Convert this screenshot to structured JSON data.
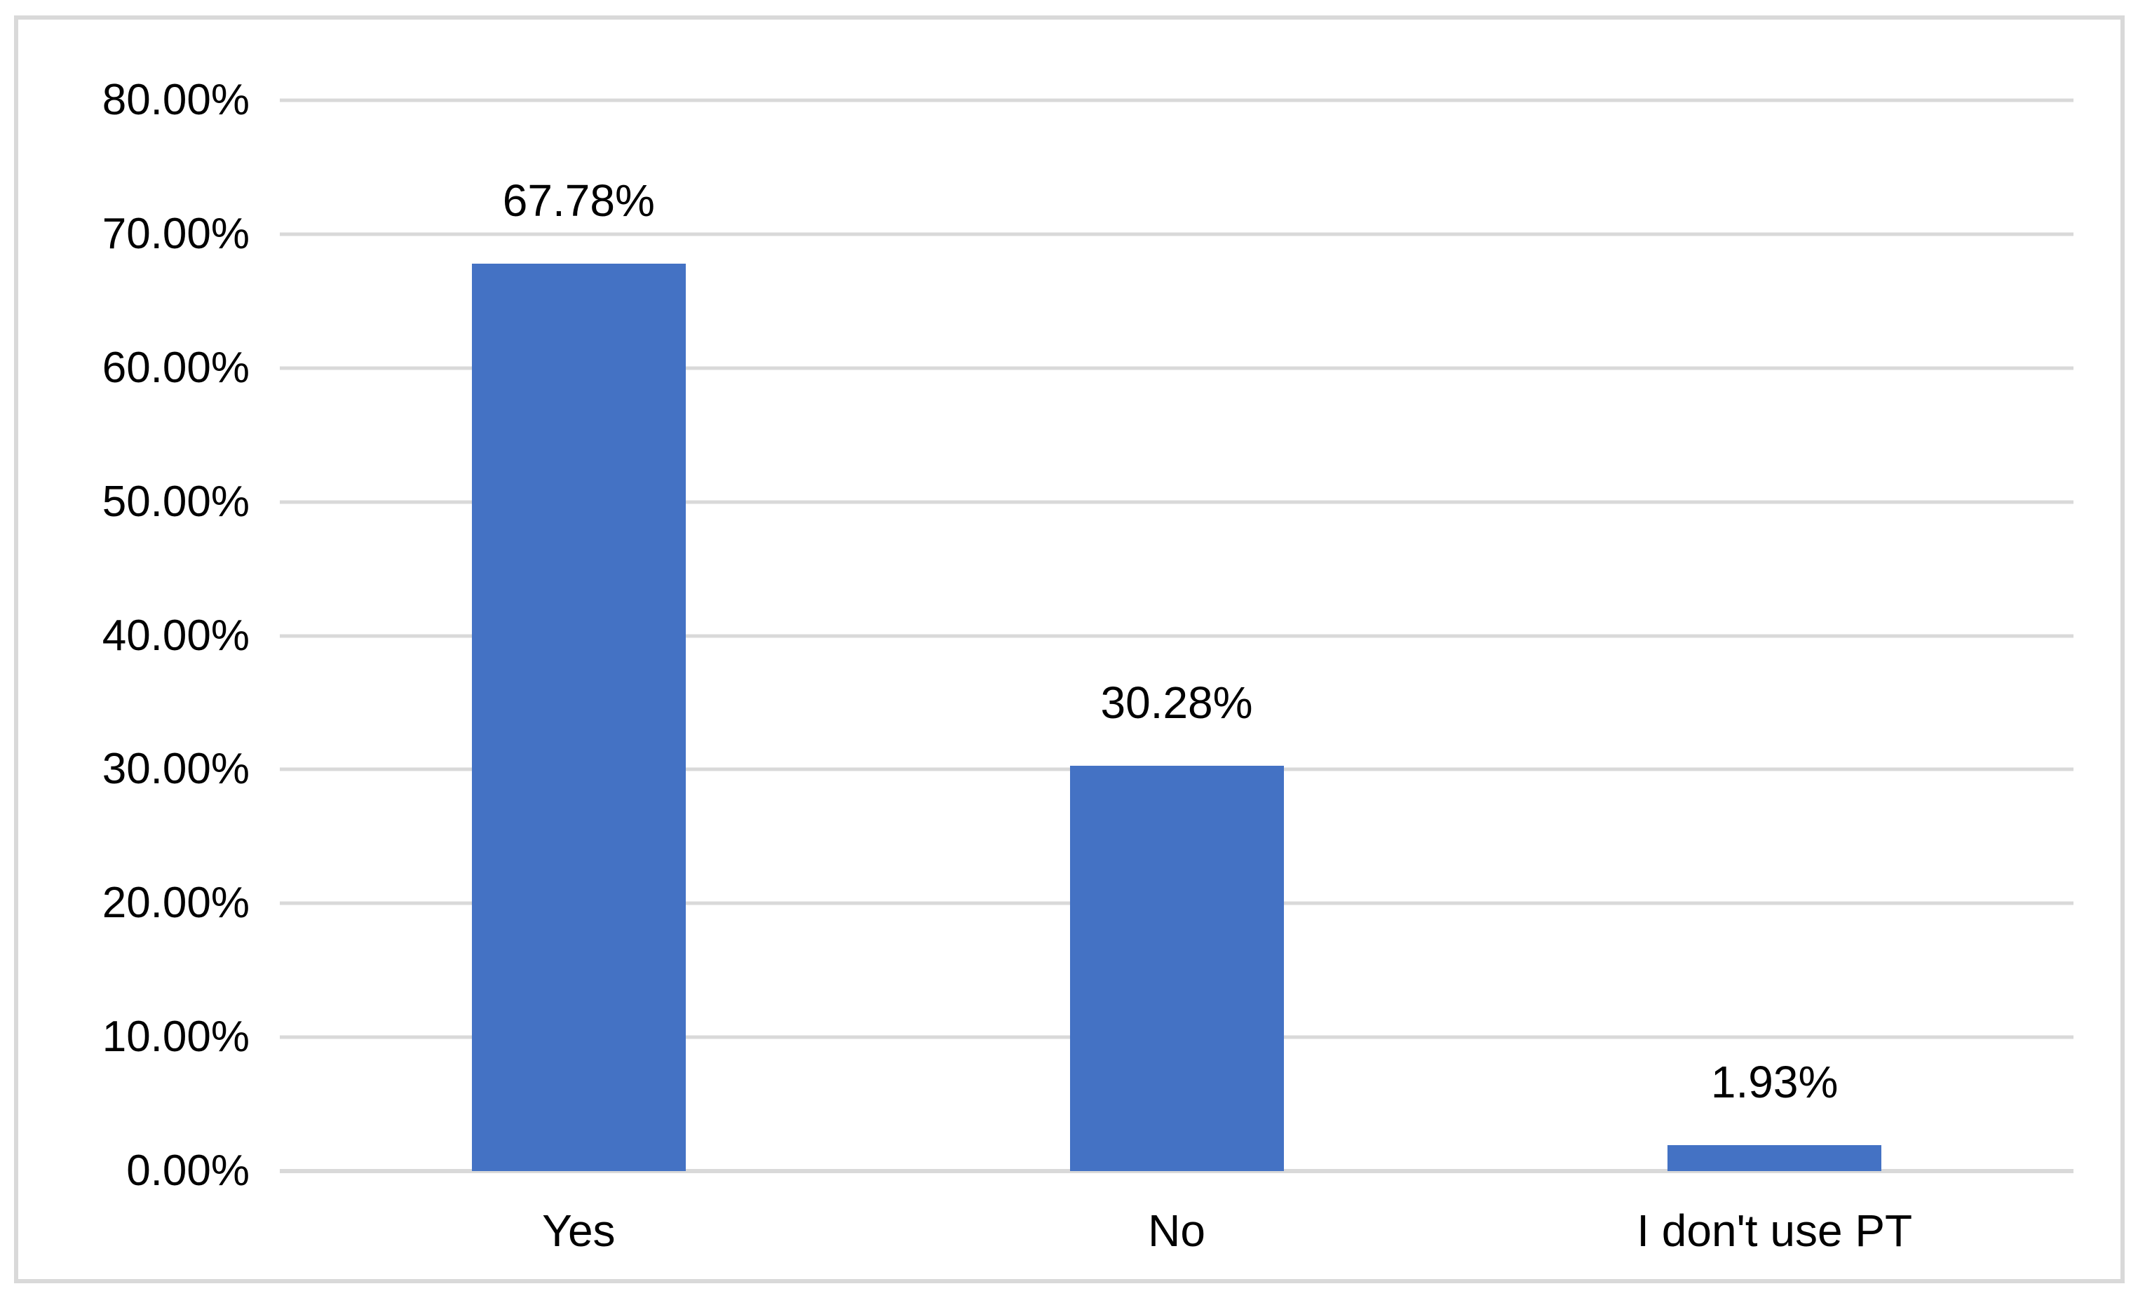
{
  "chart_data": {
    "type": "bar",
    "categories": [
      "Yes",
      "No",
      "I don't use PT"
    ],
    "values": [
      67.78,
      30.28,
      1.93
    ],
    "data_labels": [
      "67.78%",
      "30.28%",
      "1.93%"
    ],
    "series_name": "",
    "title": "",
    "xlabel": "",
    "ylabel": "",
    "ylim": [
      0,
      80
    ],
    "ytick_step": 10,
    "ytick_labels": [
      "0.00%",
      "10.00%",
      "20.00%",
      "30.00%",
      "40.00%",
      "50.00%",
      "60.00%",
      "70.00%",
      "80.00%"
    ],
    "grid": true,
    "legend": false,
    "colors": {
      "bar": "#4472C4",
      "gridline": "#D9D9D9",
      "axis_line": "#D9D9D9",
      "frame_border": "#D9D9D9",
      "text": "#000000",
      "background": "#FFFFFF"
    }
  }
}
